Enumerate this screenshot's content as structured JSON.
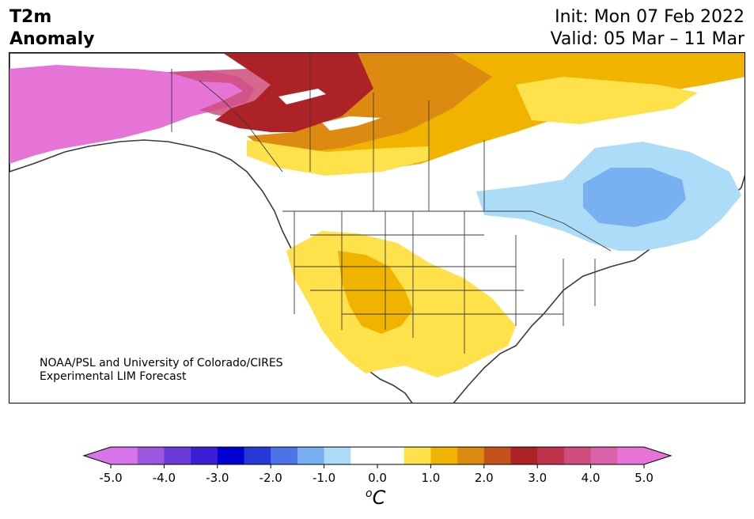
{
  "header": {
    "title_line1": "T2m",
    "title_line2": "Anomaly",
    "init": "Init: Mon 07 Feb 2022",
    "valid": "Valid: 05 Mar – 11 Mar"
  },
  "credit": {
    "line1": "NOAA/PSL and University of Colorado/CIRES",
    "line2": "Experimental LIM Forecast"
  },
  "colorbar": {
    "colors": [
      "#d874e9",
      "#9b57dd",
      "#6a3bd9",
      "#3b1fd4",
      "#0000d0",
      "#2838d8",
      "#4c74e8",
      "#78b0f2",
      "#addcf8",
      "#ffffff",
      "#ffffff",
      "#fee14b",
      "#f0b400",
      "#dd8a10",
      "#c4531a",
      "#ad2226",
      "#c0334d",
      "#cf4d7c",
      "#da62a8",
      "#e574d6"
    ],
    "ticks": [
      "-5.0",
      "-4.0",
      "-3.0",
      "-2.0",
      "-1.0",
      "0.0",
      "1.0",
      "2.0",
      "3.0",
      "4.0",
      "5.0"
    ],
    "unit_sup": "o",
    "unit_main": "C"
  },
  "map": {
    "region": "North America",
    "anomaly_colors": {
      "strong_warm": "#e574d6",
      "warm_4": "#cf4d7c",
      "warm_3": "#ad2226",
      "warm_2_5": "#c4531a",
      "warm_2": "#dd8a10",
      "warm_1_5": "#f0b400",
      "warm_1": "#fee14b",
      "cool_1": "#addcf8",
      "cool_1_5": "#78b0f2"
    }
  }
}
